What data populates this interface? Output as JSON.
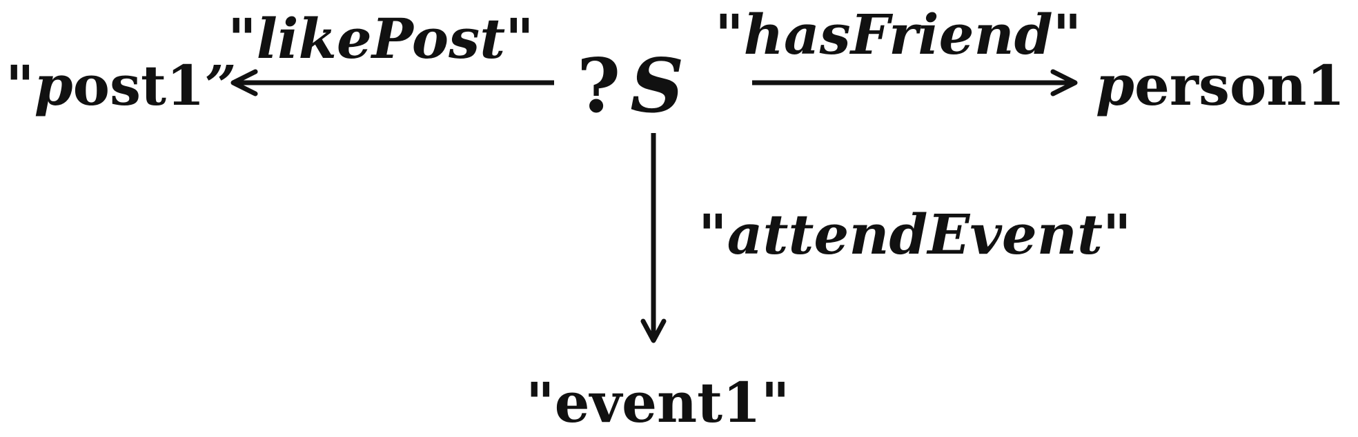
{
  "nodes": {
    "post": {
      "quote_open": "\"",
      "p": "p",
      "rest": "ost1",
      "quote_close": "”"
    },
    "subject": {
      "question": "?",
      "var": "S"
    },
    "person": {
      "p": "p",
      "rest": "erson1"
    },
    "event": {
      "text": "\"event1\""
    }
  },
  "edges": {
    "like_post": "\"likePost\"",
    "has_friend": "\"hasFriend\"",
    "attend_event": "\"attendEvent\""
  },
  "colors": {
    "ink": "#111111",
    "background": "#ffffff"
  }
}
